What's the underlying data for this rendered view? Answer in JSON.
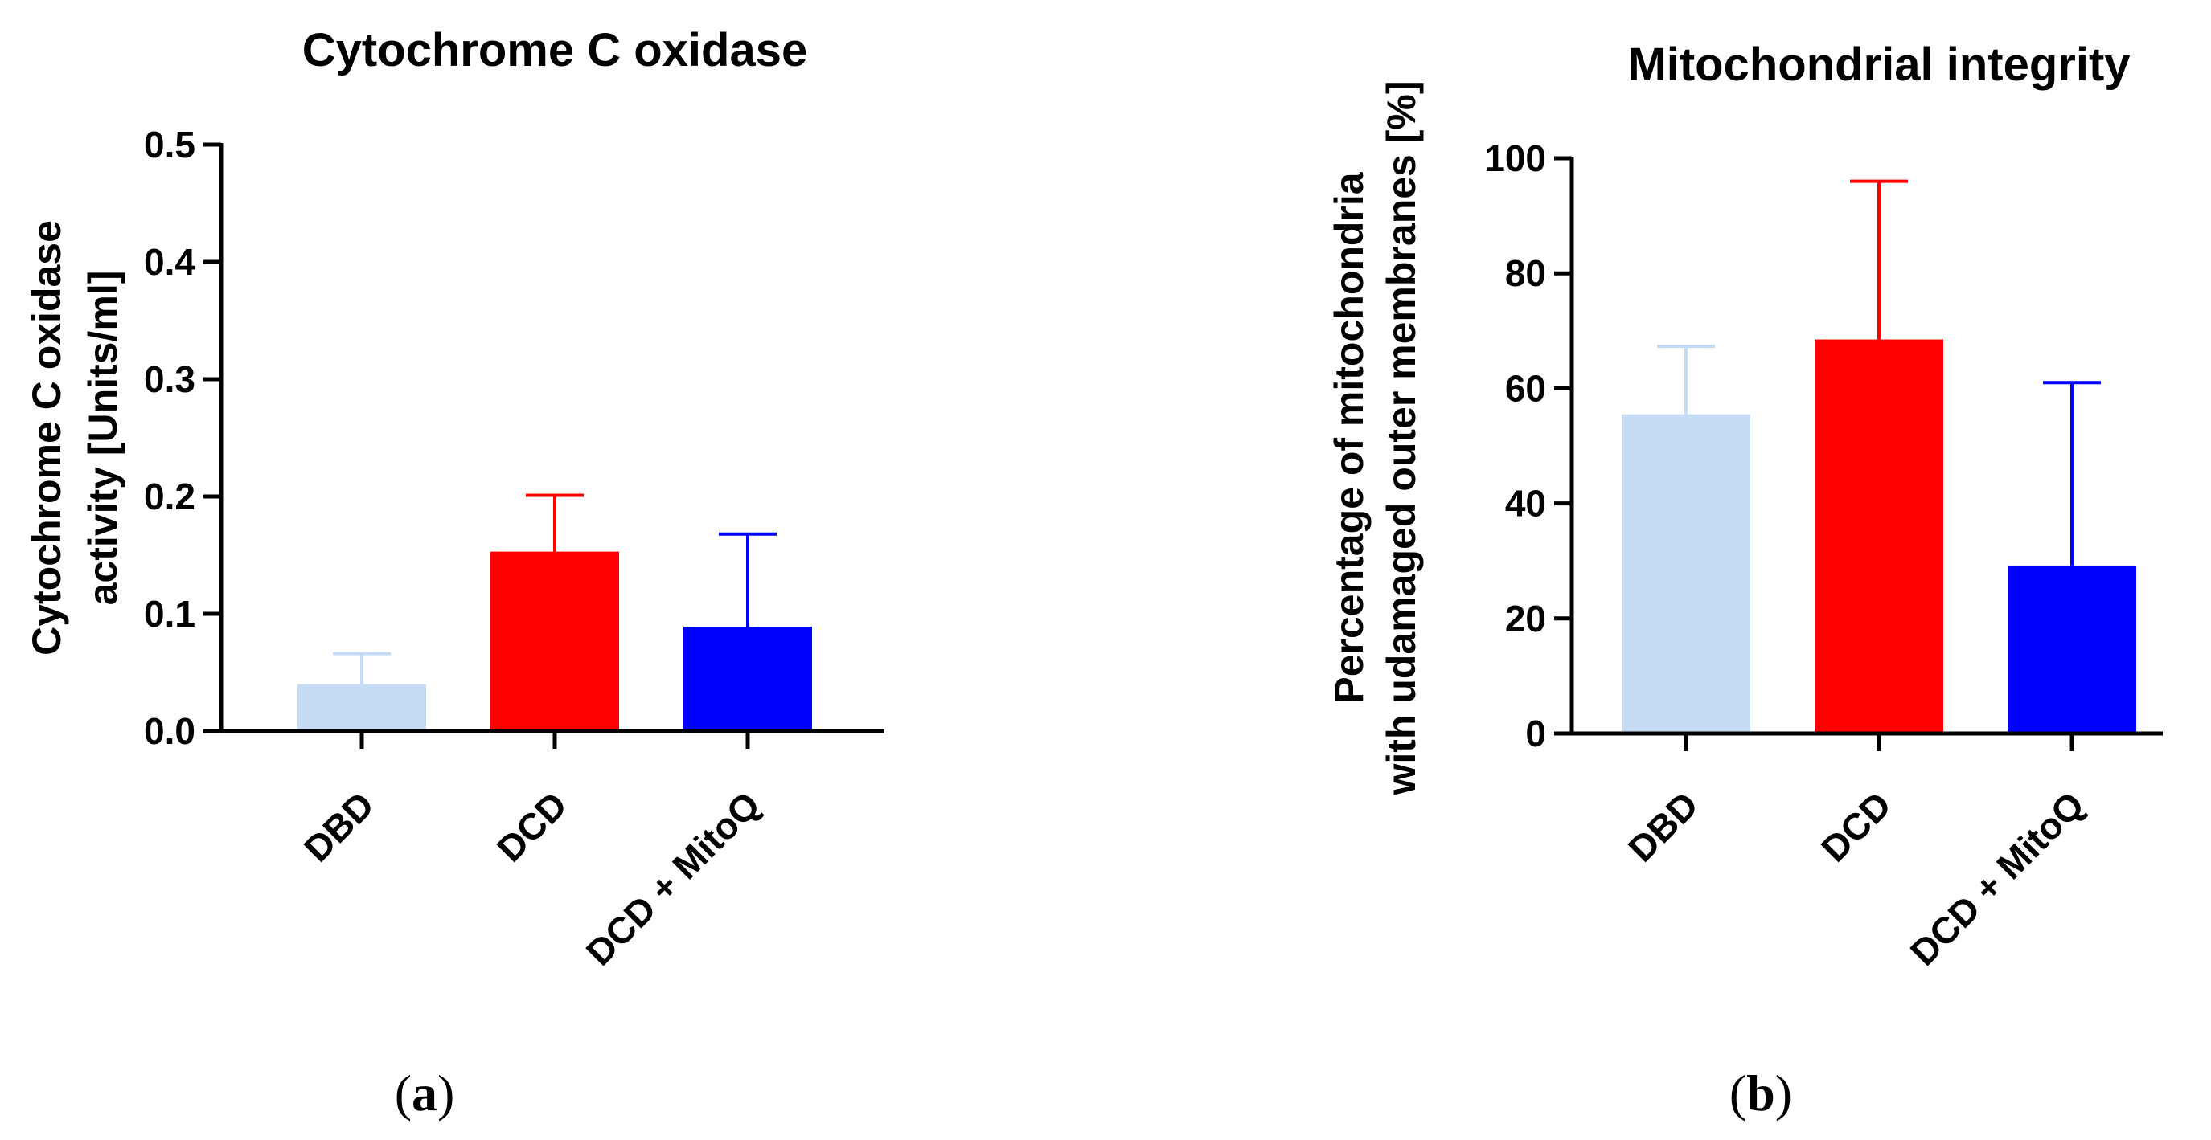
{
  "chart_data": [
    {
      "type": "bar",
      "panel_label": "a",
      "title": "Cytochrome C oxidase",
      "ylabel_lines": [
        "Cytochrome C oxidase",
        "activity [Units/ml]"
      ],
      "xlabel": "",
      "categories": [
        "DBD",
        "DCD",
        "DCD + MitoQ"
      ],
      "values": [
        0.04,
        0.153,
        0.089
      ],
      "error_upper": [
        0.066,
        0.201,
        0.168
      ],
      "colors": [
        "#C6DCF5",
        "#FF0000",
        "#0000FF"
      ],
      "ylim": [
        0,
        0.5
      ],
      "yticks": [
        0.0,
        0.1,
        0.2,
        0.3,
        0.4,
        0.5
      ],
      "ytick_labels": [
        "0.0",
        "0.1",
        "0.2",
        "0.3",
        "0.4",
        "0.5"
      ],
      "grid": false,
      "legend": "none"
    },
    {
      "type": "bar",
      "panel_label": "b",
      "title": "Mitochondrial integrity",
      "ylabel_lines": [
        "Percentage of mitochondria",
        "with udamaged outer membranes [%]"
      ],
      "xlabel": "",
      "categories": [
        "DBD",
        "DCD",
        "DCD + MitoQ"
      ],
      "values": [
        55.5,
        68.5,
        29.2
      ],
      "error_upper": [
        67.3,
        96.0,
        61.0
      ],
      "colors": [
        "#C6DCF5",
        "#FF0000",
        "#0000FF"
      ],
      "ylim": [
        0,
        100
      ],
      "yticks": [
        0,
        20,
        40,
        60,
        80,
        100
      ],
      "ytick_labels": [
        "0",
        "20",
        "40",
        "60",
        "80",
        "100"
      ],
      "grid": false,
      "legend": "none"
    }
  ]
}
